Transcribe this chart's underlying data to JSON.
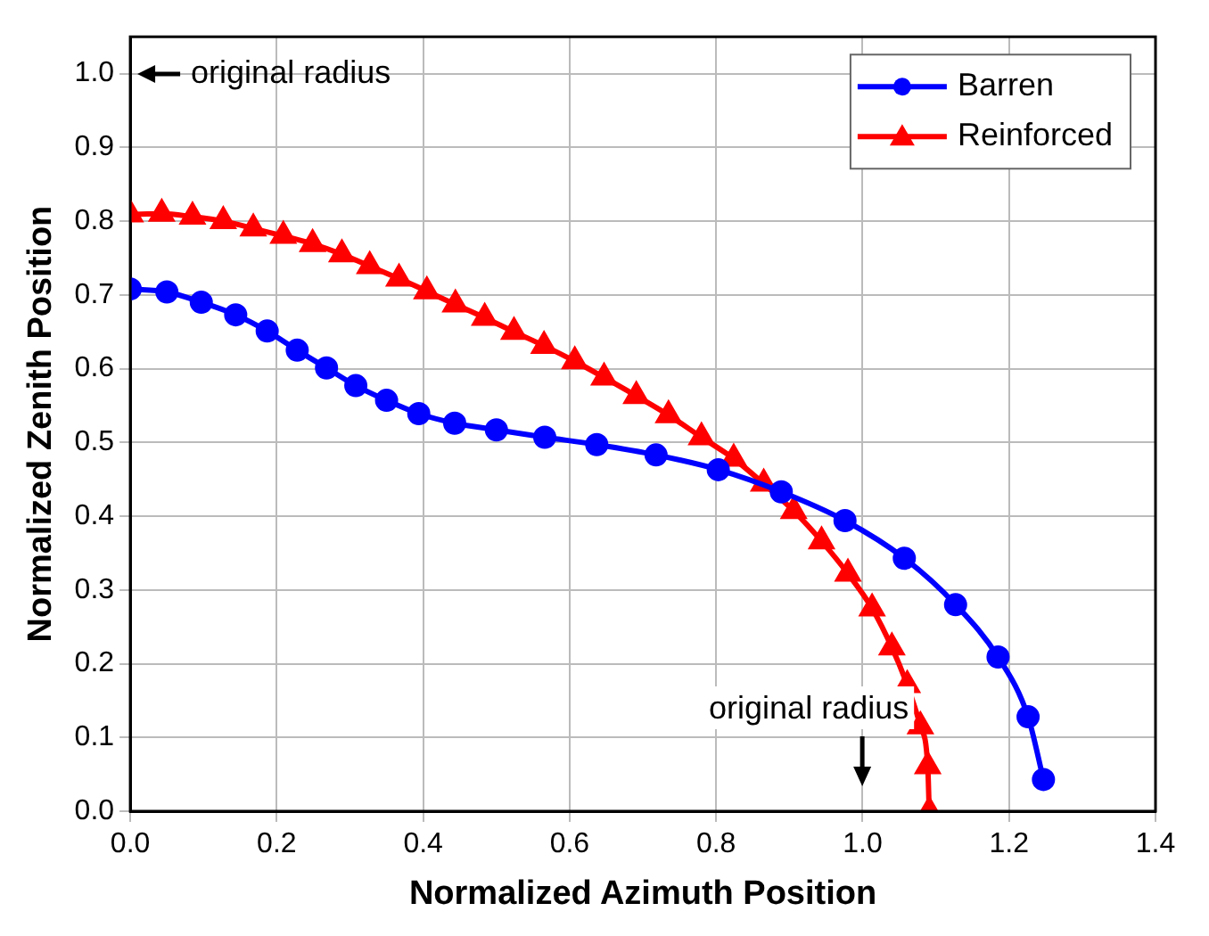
{
  "chart_data": {
    "type": "line",
    "xlabel": "Normalized Azimuth Position",
    "ylabel": "Normalized Zenith Position",
    "xlim": [
      0,
      1.4
    ],
    "xticks": [
      {
        "value": 0,
        "label": "0.0"
      },
      0.2,
      0.4,
      0.6,
      0.8,
      {
        "value": 1,
        "label": "1.0"
      },
      1.2,
      1.4
    ],
    "ylim": [
      0,
      1.05
    ],
    "yticks": [
      {
        "value": 0,
        "label": "0.0"
      },
      0.1,
      0.2,
      0.3,
      0.4,
      0.5,
      0.6,
      0.7,
      0.8,
      0.9,
      {
        "value": 1,
        "label": "1.0"
      }
    ],
    "grid": true,
    "legend": "top right",
    "series": [
      {
        "name": "Barren",
        "color": "#0000ff",
        "marker": "circle",
        "x": [
          0,
          0.05,
          0.097,
          0.144,
          0.187,
          0.228,
          0.268,
          0.308,
          0.35,
          0.394,
          0.443,
          0.5,
          0.566,
          0.637,
          0.718,
          0.803,
          0.889,
          0.976,
          1.057,
          1.127,
          1.185,
          1.226,
          1.247
        ],
        "values": [
          0.708,
          0.704,
          0.69,
          0.673,
          0.651,
          0.625,
          0.601,
          0.577,
          0.557,
          0.539,
          0.526,
          0.517,
          0.507,
          0.497,
          0.483,
          0.463,
          0.433,
          0.394,
          0.343,
          0.28,
          0.209,
          0.128,
          0.043
        ]
      },
      {
        "name": "Reinforced",
        "color": "#ff0000",
        "marker": "triangle",
        "x": [
          0,
          0.043,
          0.085,
          0.127,
          0.168,
          0.209,
          0.249,
          0.289,
          0.327,
          0.367,
          0.405,
          0.444,
          0.484,
          0.524,
          0.565,
          0.607,
          0.647,
          0.691,
          0.735,
          0.78,
          0.824,
          0.865,
          0.906,
          0.944,
          0.98,
          1.013,
          1.04,
          1.061,
          1.079,
          1.089,
          1.091
        ],
        "values": [
          0.809,
          0.81,
          0.806,
          0.8,
          0.79,
          0.78,
          0.769,
          0.755,
          0.739,
          0.722,
          0.705,
          0.687,
          0.669,
          0.65,
          0.631,
          0.61,
          0.588,
          0.563,
          0.537,
          0.507,
          0.478,
          0.444,
          0.407,
          0.366,
          0.322,
          0.275,
          0.222,
          0.171,
          0.115,
          0.061,
          0
        ]
      }
    ],
    "annotations": [
      "original radius",
      "original radius"
    ]
  }
}
